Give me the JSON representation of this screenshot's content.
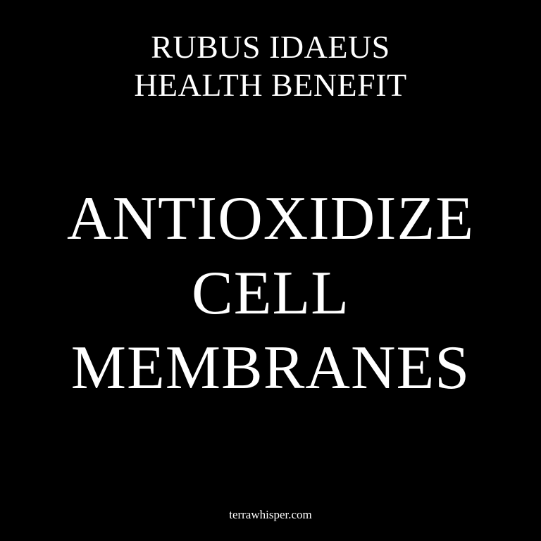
{
  "subtitle": {
    "line1": "RUBUS IDAEUS",
    "line2": "HEALTH BENEFIT"
  },
  "headline": {
    "line1": "ANTIOXIDIZE",
    "line2": "CELL",
    "line3": "MEMBRANES"
  },
  "footer": {
    "site": "terrawhisper.com"
  },
  "colors": {
    "background": "#000000",
    "text": "#ffffff"
  }
}
